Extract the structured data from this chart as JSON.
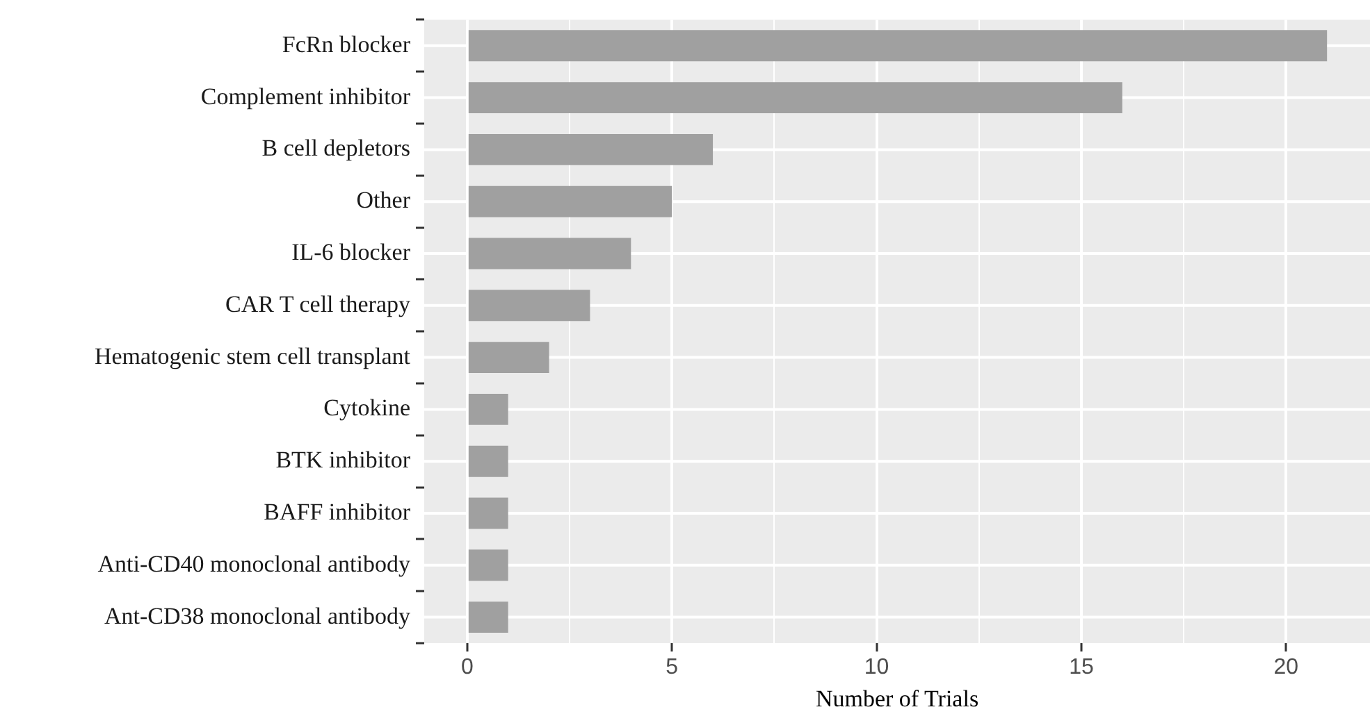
{
  "chart_data": {
    "type": "bar",
    "orientation": "horizontal",
    "xlabel": "Number of Trials",
    "categories": [
      "FcRn blocker",
      "Complement inhibitor",
      "B cell depletors",
      "Other",
      "IL-6 blocker",
      "CAR T cell therapy",
      "Hematogenic stem cell transplant",
      "Cytokine",
      "BTK inhibitor",
      "BAFF inhibitor",
      "Anti-CD40 monoclonal antibody",
      "Ant-CD38 monoclonal antibody"
    ],
    "values": [
      21,
      16,
      6,
      5,
      4,
      3,
      2,
      1,
      1,
      1,
      1,
      1
    ],
    "color": "#a0a0a0",
    "xlim": [
      -1.05,
      22.05
    ],
    "xticks": [
      0,
      {
        "value": 2.5,
        "label": null
      },
      5,
      {
        "value": 7.5,
        "label": null
      },
      10,
      {
        "value": 12.5,
        "label": null
      },
      15,
      {
        "value": 17.5,
        "label": null
      },
      20
    ],
    "grid": true,
    "legend": false
  }
}
